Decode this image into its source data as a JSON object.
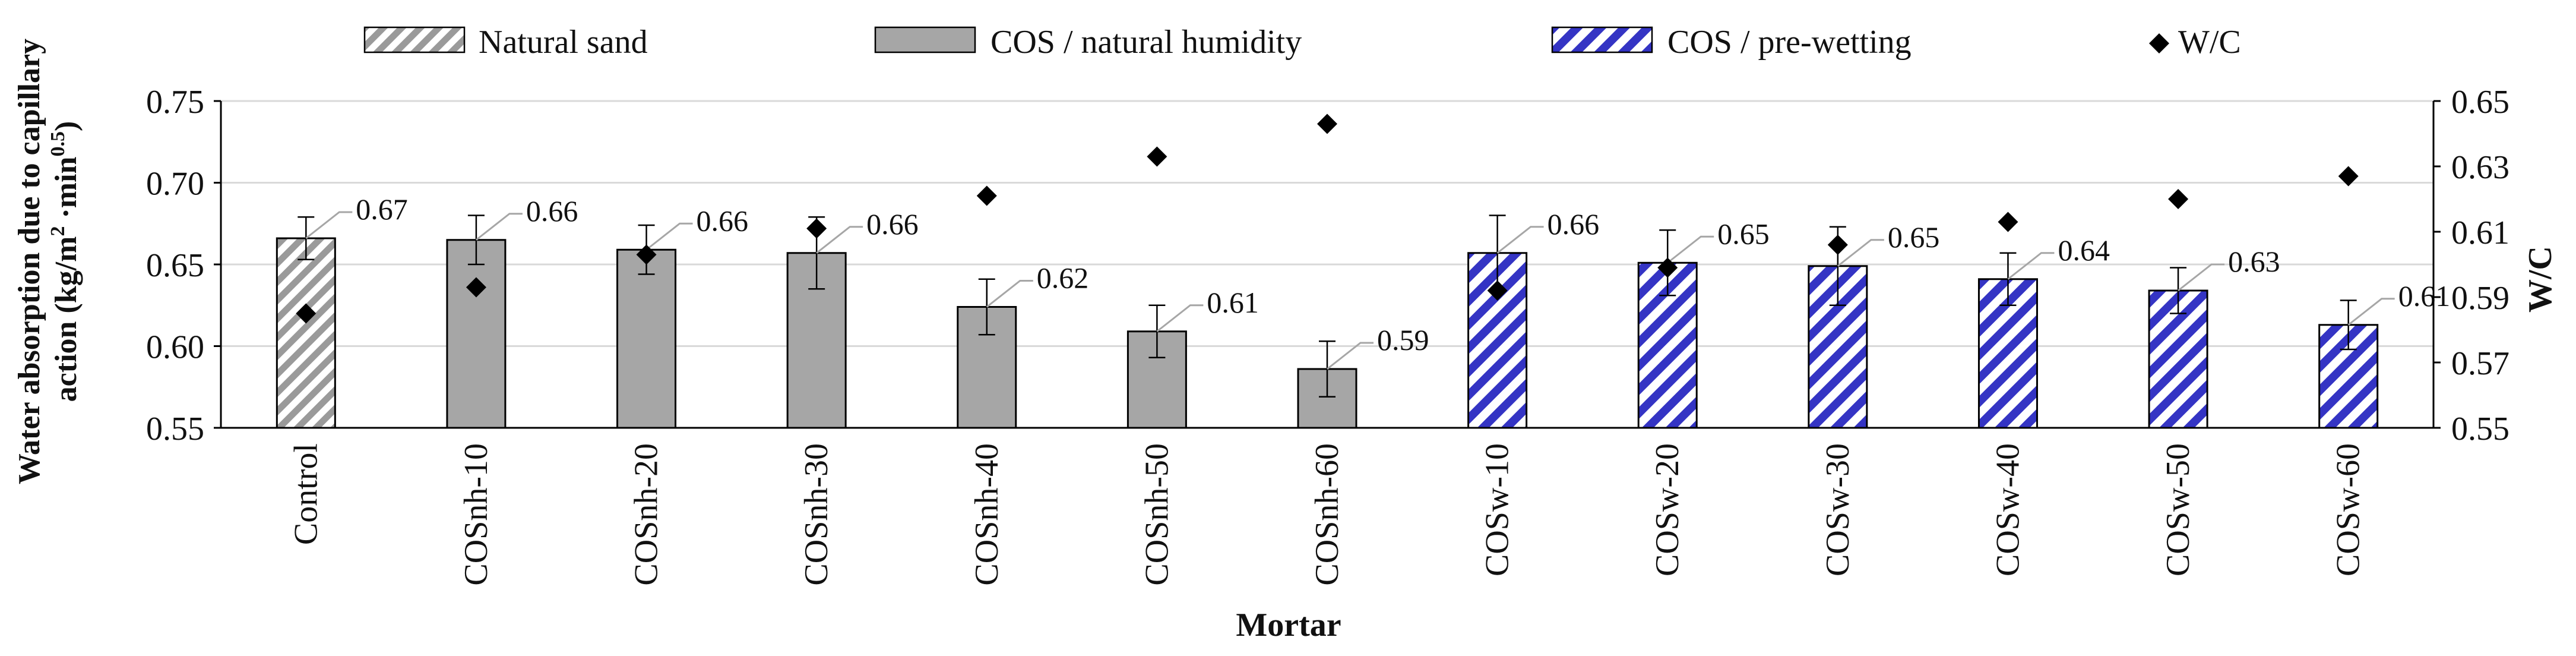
{
  "chart_data": {
    "type": "bar",
    "title": "",
    "xlabel": "Mortar",
    "ylabel_lines": [
      "Water absorption due to capillary",
      "action (kg/m²·min⁰·⁵)"
    ],
    "ylabel_main": "Water absorption due to capillary",
    "ylabel_unit_prefix": "action (kg/m",
    "ylabel_unit_sq": "2",
    "ylabel_unit_mid": " ·min",
    "ylabel_unit_exp": "0.5",
    "ylabel_unit_suffix": ")",
    "y2label": "W/C",
    "ylim": [
      0.55,
      0.75
    ],
    "yticks": [
      "0.55",
      "0.60",
      "0.65",
      "0.70",
      "0.75"
    ],
    "y2lim": [
      0.55,
      0.65
    ],
    "y2ticks": [
      "0.55",
      "0.57",
      "0.59",
      "0.61",
      "0.63",
      "0.65"
    ],
    "grid": true,
    "legend_position": "top",
    "categories": [
      "Control",
      "COSnh-10",
      "COSnh-20",
      "COSnh-30",
      "COSnh-40",
      "COSnh-50",
      "COSnh-60",
      "COSw-10",
      "COSw-20",
      "COSw-30",
      "COSw-40",
      "COSw-50",
      "COSw-60"
    ],
    "bar_groups": [
      "natural",
      "cos_nh",
      "cos_nh",
      "cos_nh",
      "cos_nh",
      "cos_nh",
      "cos_nh",
      "cos_w",
      "cos_w",
      "cos_w",
      "cos_w",
      "cos_w",
      "cos_w"
    ],
    "values": [
      0.666,
      0.665,
      0.659,
      0.657,
      0.624,
      0.609,
      0.586,
      0.657,
      0.651,
      0.649,
      0.641,
      0.634,
      0.613
    ],
    "error": [
      0.013,
      0.015,
      0.015,
      0.022,
      0.017,
      0.016,
      0.017,
      0.023,
      0.02,
      0.024,
      0.016,
      0.014,
      0.015
    ],
    "value_labels": [
      "0.67",
      "0.66",
      "0.66",
      "0.66",
      "0.62",
      "0.61",
      "0.59",
      "0.66",
      "0.65",
      "0.65",
      "0.64",
      "0.63",
      "0.61"
    ],
    "wc_values": [
      0.585,
      0.593,
      0.603,
      0.611,
      0.621,
      0.633,
      0.643,
      0.592,
      0.599,
      0.606,
      0.613,
      0.62,
      0.627
    ],
    "legend": [
      {
        "key": "natural",
        "label": "Natural sand"
      },
      {
        "key": "cos_nh",
        "label": "COS / natural humidity"
      },
      {
        "key": "cos_w",
        "label": "COS / pre-wetting"
      },
      {
        "key": "wc",
        "label": "W/C"
      }
    ],
    "colors": {
      "natural_stripe": "#9a9a9a",
      "natural_bg": "#ffffff",
      "cos_nh_fill": "#a6a6a6",
      "cos_w_stripe": "#3434c4",
      "cos_w_bg": "#ffffff",
      "marker": "#000000",
      "grid": "#d9d9d9",
      "axis": "#000000",
      "leader": "#a6a6a6"
    }
  }
}
